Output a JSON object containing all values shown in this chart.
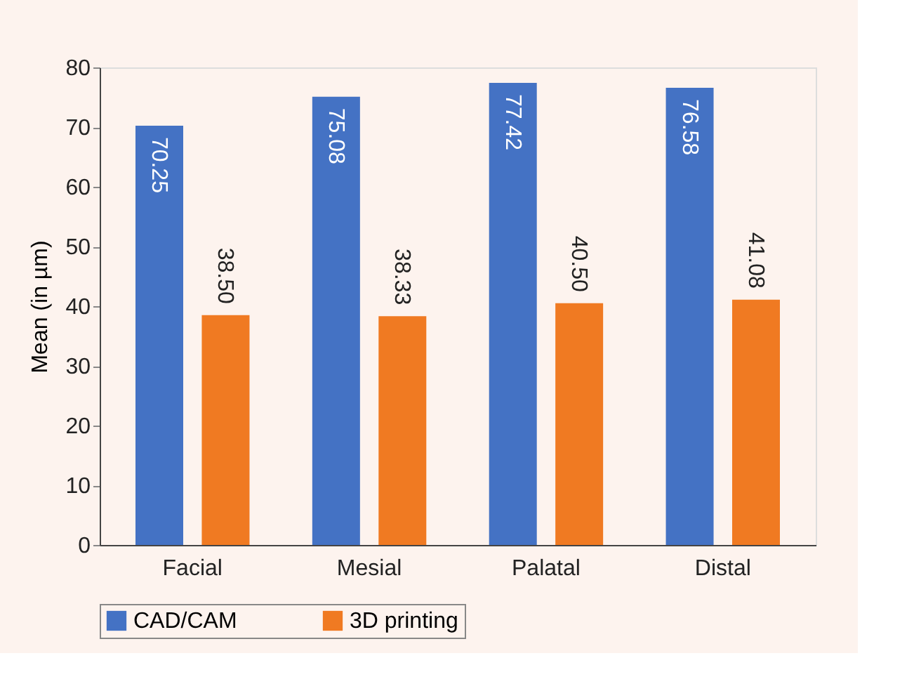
{
  "chart_data": {
    "type": "bar",
    "ylabel": "Mean (in µm)",
    "categories": [
      "Facial",
      "Mesial",
      "Palatal",
      "Distal"
    ],
    "series": [
      {
        "name": "CAD/CAM",
        "color": "#4472c4",
        "values": [
          70.25,
          75.08,
          77.42,
          76.58
        ]
      },
      {
        "name": "3D printing",
        "color": "#f07a22",
        "values": [
          38.5,
          38.33,
          40.5,
          41.08
        ]
      }
    ],
    "value_labels": [
      [
        "70.25",
        "75.08",
        "77.42",
        "76.58"
      ],
      [
        "38.50",
        "38.33",
        "40.50",
        "41.08"
      ]
    ],
    "ylim": [
      0,
      80
    ],
    "yticks": [
      0,
      10,
      20,
      30,
      40,
      50,
      60,
      70,
      80
    ],
    "grid": false,
    "legend": "bottom"
  }
}
